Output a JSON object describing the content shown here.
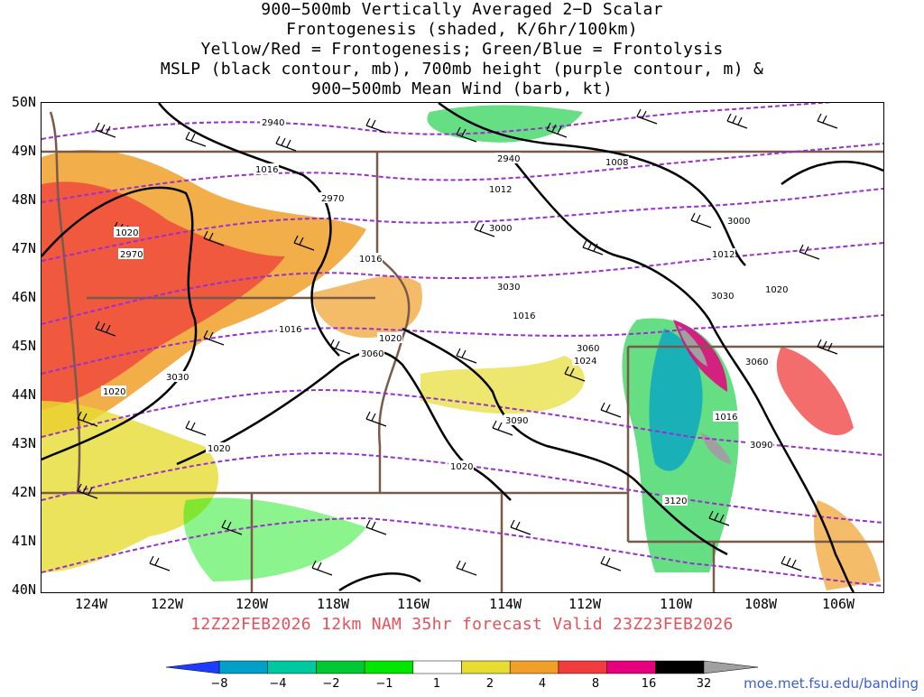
{
  "title_lines": [
    "900−500mb Vertically Averaged 2−D Scalar",
    "Frontogenesis (shaded, K/6hr/100km)",
    "Yellow/Red = Frontogenesis;  Green/Blue = Frontolysis",
    "MSLP (black contour, mb), 700mb height (purple contour, m) &",
    "900−500mb Mean Wind (barb, kt)"
  ],
  "lat_labels": [
    "50N",
    "49N",
    "48N",
    "47N",
    "46N",
    "45N",
    "44N",
    "43N",
    "42N",
    "41N",
    "40N"
  ],
  "lon_labels": [
    "124W",
    "122W",
    "120W",
    "118W",
    "116W",
    "114W",
    "112W",
    "110W",
    "108W",
    "106W"
  ],
  "valid_text": "12Z22FEB2026 12km NAM 35hr forecast Valid 23Z23FEB2026",
  "colorbar": {
    "labels": [
      "−8",
      "−4",
      "−2",
      "−1",
      "1",
      "2",
      "4",
      "8",
      "16",
      "32"
    ],
    "colors": [
      "#1e3cff",
      "#00a0c8",
      "#00c8a0",
      "#00c832",
      "#00e600",
      "#ffffff",
      "#e6dc32",
      "#f0a028",
      "#f03c3c",
      "#e6007d",
      "#000000",
      "#a0a0a0"
    ]
  },
  "credit": "moe.met.fsu.edu/banding",
  "contour_labels": {
    "mslp": [
      "1016",
      "1008",
      "1012",
      "1020",
      "1016",
      "1012",
      "1016",
      "1020",
      "1016",
      "1020",
      "1020",
      "1020",
      "1016",
      "1024",
      "1020"
    ],
    "height": [
      "2940",
      "2940",
      "2970",
      "2970",
      "3000",
      "3000",
      "3030",
      "3030",
      "3060",
      "3030",
      "3060",
      "3090",
      "3060",
      "3090",
      "3120"
    ]
  }
}
